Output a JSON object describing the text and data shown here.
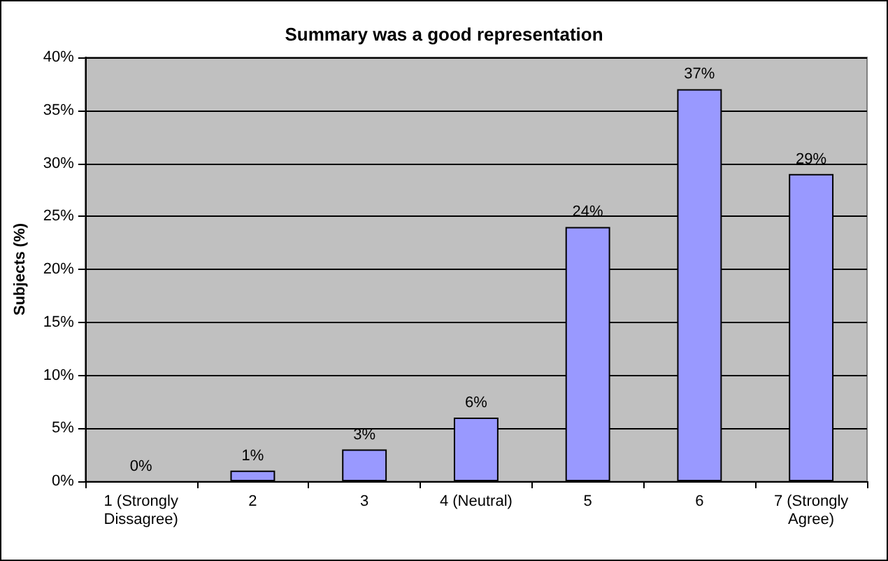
{
  "chart_data": {
    "type": "bar",
    "title": "Summary was a good representation",
    "ylabel": "Subjects (%)",
    "categories": [
      "1 (Strongly\nDissagree)",
      "2",
      "3",
      "4 (Neutral)",
      "5",
      "6",
      "7 (Strongly\nAgree)"
    ],
    "values": [
      0,
      1,
      3,
      6,
      24,
      37,
      29
    ],
    "color": "#9999ff",
    "value_labels": [
      "0%",
      "1%",
      "3%",
      "6%",
      "24%",
      "37%",
      "29%"
    ],
    "ylim": [
      0,
      40
    ],
    "yticks": [
      {
        "value": 0,
        "label": "0%"
      },
      {
        "value": 5,
        "label": "5%"
      },
      {
        "value": 10,
        "label": "10%"
      },
      {
        "value": 15,
        "label": "15%"
      },
      {
        "value": 20,
        "label": "20%"
      },
      {
        "value": 25,
        "label": "25%"
      },
      {
        "value": 30,
        "label": "30%"
      },
      {
        "value": 35,
        "label": "35%"
      },
      {
        "value": 40,
        "label": "40%"
      }
    ],
    "grid": "y"
  }
}
